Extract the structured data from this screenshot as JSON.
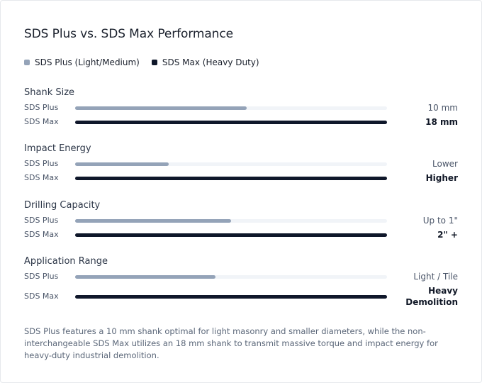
{
  "chart_data": {
    "type": "bar",
    "orientation": "horizontal",
    "title": "SDS Plus vs. SDS Max Performance",
    "legend": [
      {
        "name": "SDS Plus (Light/Medium)",
        "color": "#94a3b8"
      },
      {
        "name": "SDS Max (Heavy Duty)",
        "color": "#0f172a"
      }
    ],
    "groups": [
      {
        "label": "Shank Size",
        "rows": [
          {
            "name": "SDS Plus",
            "fraction": 0.55,
            "value_label": "10 mm"
          },
          {
            "name": "SDS Max",
            "fraction": 1.0,
            "value_label": "18 mm"
          }
        ]
      },
      {
        "label": "Impact Energy",
        "rows": [
          {
            "name": "SDS Plus",
            "fraction": 0.3,
            "value_label": "Lower"
          },
          {
            "name": "SDS Max",
            "fraction": 1.0,
            "value_label": "Higher"
          }
        ]
      },
      {
        "label": "Drilling Capacity",
        "rows": [
          {
            "name": "SDS Plus",
            "fraction": 0.5,
            "value_label": "Up to 1\""
          },
          {
            "name": "SDS Max",
            "fraction": 1.0,
            "value_label": "2\" +"
          }
        ]
      },
      {
        "label": "Application Range",
        "rows": [
          {
            "name": "SDS Plus",
            "fraction": 0.45,
            "value_label": "Light / Tile"
          },
          {
            "name": "SDS Max",
            "fraction": 1.0,
            "value_label": "Heavy Demolition"
          }
        ]
      }
    ],
    "colors": {
      "plus": "#94a3b8",
      "max": "#0f172a",
      "track": "#f1f4f8"
    }
  },
  "footnote": "SDS Plus features a 10 mm shank optimal for light masonry and smaller diameters, while the non-interchangeable SDS Max utilizes an 18 mm shank to transmit massive torque and impact energy for heavy-duty industrial demolition."
}
